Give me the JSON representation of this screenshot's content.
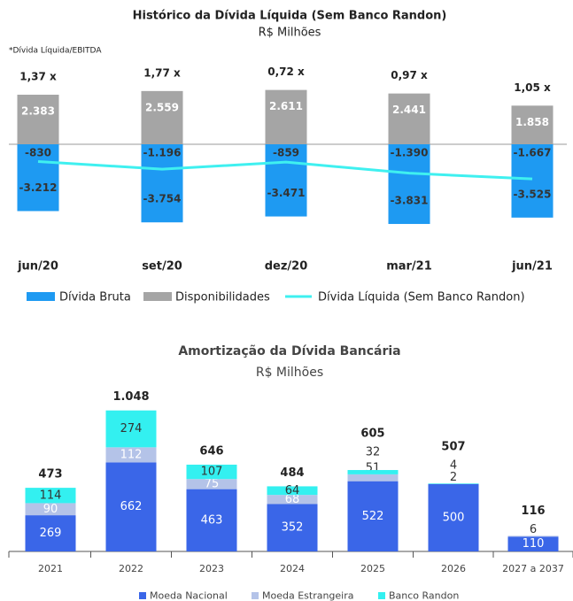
{
  "chart_data": [
    {
      "type": "bar",
      "title": "Histórico da Dívida Líquida (Sem Banco Randon)",
      "subtitle": "R$ Milhões",
      "note": "*Dívida Líquida/EBITDA",
      "categories": [
        "jun/20",
        "set/20",
        "dez/20",
        "mar/21",
        "jun/21"
      ],
      "annotations": [
        "1,37 x",
        "1,77 x",
        "0,72 x",
        "0,97 x",
        "1,05 x"
      ],
      "ylim": [
        -4000,
        3000
      ],
      "series": [
        {
          "name": "Dívida Bruta",
          "color": "#1e9af2",
          "values": [
            -3212,
            -3754,
            -3471,
            -3831,
            -3525
          ],
          "value_labels": [
            "-3.212",
            "-3.754",
            "-3.471",
            "-3.831",
            "-3.525"
          ]
        },
        {
          "name": "Disponibilidades",
          "color": "#a5a5a5",
          "values": [
            2383,
            2559,
            2611,
            2441,
            1858
          ],
          "value_labels": [
            "2.383",
            "2.559",
            "2.611",
            "2.441",
            "1.858"
          ]
        },
        {
          "name": "Dívida Líquida (Sem Banco Randon)",
          "color": "#3ff0f0",
          "type": "line",
          "values": [
            -830,
            -1196,
            -859,
            -1390,
            -1667
          ],
          "value_labels": [
            "-830",
            "-1.196",
            "-859",
            "-1.390",
            "-1.667"
          ]
        }
      ]
    },
    {
      "type": "bar",
      "stacked": true,
      "title": "Amortização da Dívida Bancária",
      "subtitle": "R$ Milhões",
      "categories": [
        "2021",
        "2022",
        "2023",
        "2024",
        "2025",
        "2026",
        "2027 a 2037"
      ],
      "ylim": [
        0,
        1100
      ],
      "series": [
        {
          "name": "Moeda Nacional",
          "color": "#3a66e8",
          "values": [
            269,
            662,
            463,
            352,
            522,
            500,
            110
          ]
        },
        {
          "name": "Moeda Estrangeira",
          "color": "#b4c3e8",
          "values": [
            90,
            112,
            75,
            68,
            51,
            2,
            6
          ]
        },
        {
          "name": "Banco Randon",
          "color": "#33f0f0",
          "values": [
            114,
            274,
            107,
            64,
            32,
            4,
            null
          ]
        }
      ],
      "totals": {
        "values": [
          473,
          1048,
          646,
          484,
          605,
          507,
          116
        ],
        "value_labels": [
          "473",
          "1.048",
          "646",
          "484",
          "605",
          "507",
          "116"
        ]
      }
    }
  ]
}
